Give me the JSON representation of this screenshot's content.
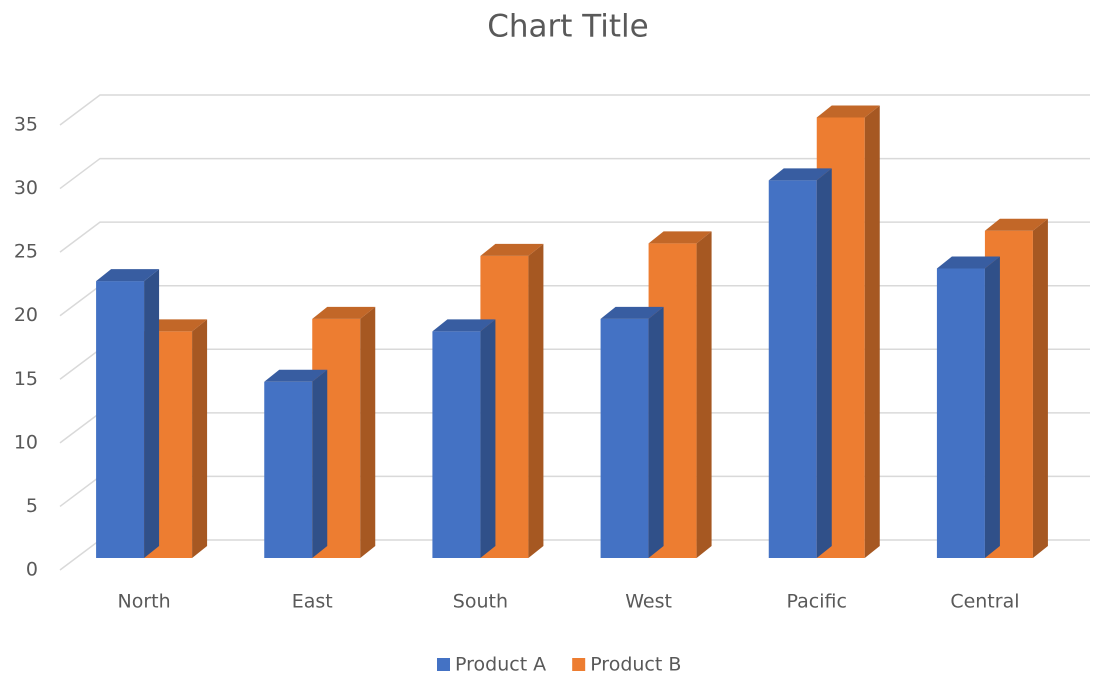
{
  "chart_data": {
    "type": "bar3d",
    "title": "Chart Title",
    "categories": [
      "North",
      "East",
      "South",
      "West",
      "Pacific",
      "Central"
    ],
    "series": [
      {
        "name": "Product A",
        "color": "#4472c4",
        "values": [
          22,
          14,
          18,
          19,
          30,
          23
        ]
      },
      {
        "name": "Product B",
        "color": "#ed7d31",
        "values": [
          18,
          19,
          24,
          25,
          35,
          26
        ]
      }
    ],
    "ylim": [
      0,
      35
    ],
    "yticks": [
      0,
      5,
      10,
      15,
      20,
      25,
      30,
      35
    ],
    "grid": true,
    "legend": "bottom"
  }
}
